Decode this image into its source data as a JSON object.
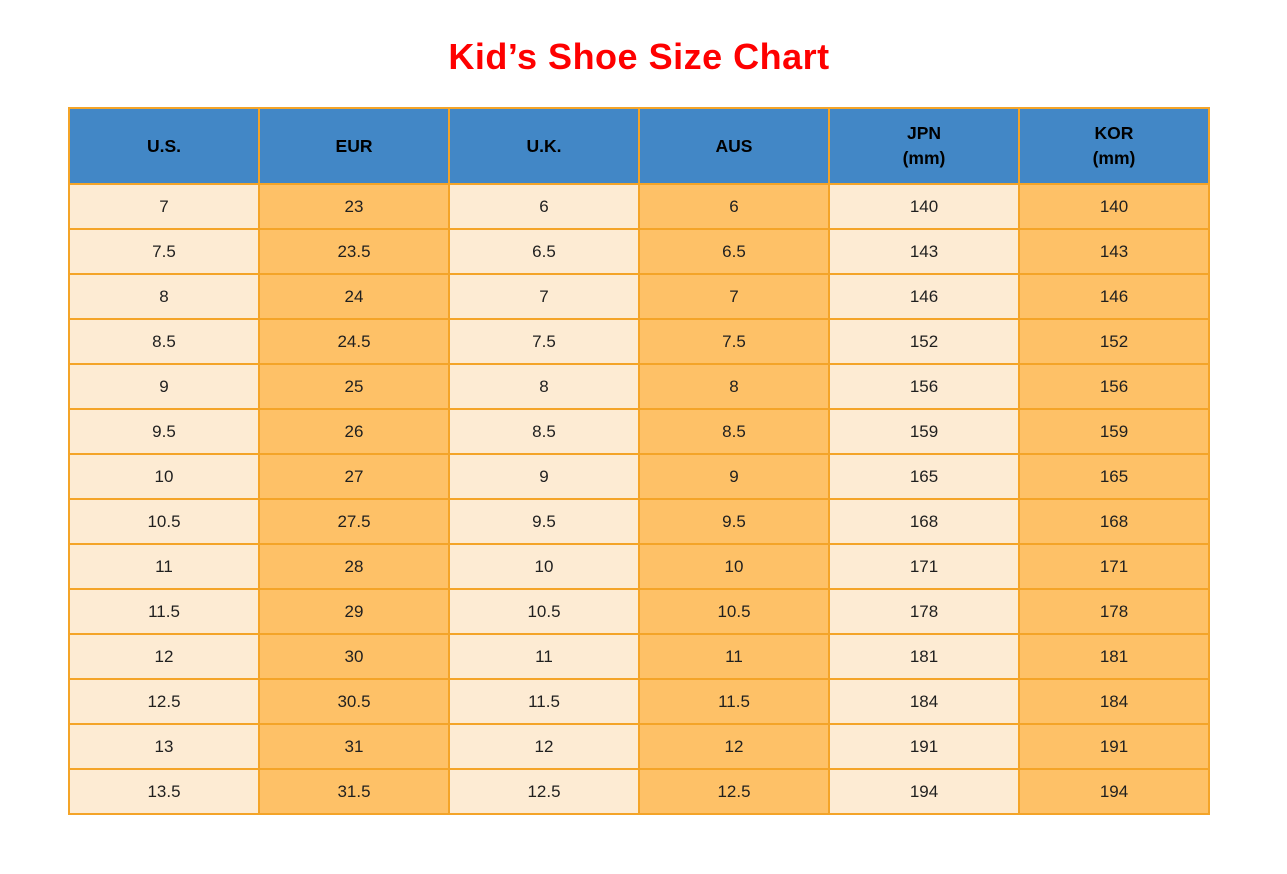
{
  "title": "Kid’s Shoe Size Chart",
  "table": {
    "headers": [
      {
        "label": "U.S.",
        "sub": ""
      },
      {
        "label": "EUR",
        "sub": ""
      },
      {
        "label": "U.K.",
        "sub": ""
      },
      {
        "label": "AUS",
        "sub": ""
      },
      {
        "label": "JPN",
        "sub": "(mm)"
      },
      {
        "label": "KOR",
        "sub": "(mm)"
      }
    ],
    "rows": [
      [
        "7",
        "23",
        "6",
        "6",
        "140",
        "140"
      ],
      [
        "7.5",
        "23.5",
        "6.5",
        "6.5",
        "143",
        "143"
      ],
      [
        "8",
        "24",
        "7",
        "7",
        "146",
        "146"
      ],
      [
        "8.5",
        "24.5",
        "7.5",
        "7.5",
        "152",
        "152"
      ],
      [
        "9",
        "25",
        "8",
        "8",
        "156",
        "156"
      ],
      [
        "9.5",
        "26",
        "8.5",
        "8.5",
        "159",
        "159"
      ],
      [
        "10",
        "27",
        "9",
        "9",
        "165",
        "165"
      ],
      [
        "10.5",
        "27.5",
        "9.5",
        "9.5",
        "168",
        "168"
      ],
      [
        "11",
        "28",
        "10",
        "10",
        "171",
        "171"
      ],
      [
        "11.5",
        "29",
        "10.5",
        "10.5",
        "178",
        "178"
      ],
      [
        "12",
        "30",
        "11",
        "11",
        "181",
        "181"
      ],
      [
        "12.5",
        "30.5",
        "11.5",
        "11.5",
        "184",
        "184"
      ],
      [
        "13",
        "31",
        "12",
        "12",
        "191",
        "191"
      ],
      [
        "13.5",
        "31.5",
        "12.5",
        "12.5",
        "194",
        "194"
      ]
    ]
  },
  "chart_data": {
    "type": "table",
    "title": "Kid’s Shoe Size Chart",
    "columns": [
      "U.S.",
      "EUR",
      "U.K.",
      "AUS",
      "JPN (mm)",
      "KOR (mm)"
    ],
    "rows": [
      [
        7,
        23,
        6,
        6,
        140,
        140
      ],
      [
        7.5,
        23.5,
        6.5,
        6.5,
        143,
        143
      ],
      [
        8,
        24,
        7,
        7,
        146,
        146
      ],
      [
        8.5,
        24.5,
        7.5,
        7.5,
        152,
        152
      ],
      [
        9,
        25,
        8,
        8,
        156,
        156
      ],
      [
        9.5,
        26,
        8.5,
        8.5,
        159,
        159
      ],
      [
        10,
        27,
        9,
        9,
        165,
        165
      ],
      [
        10.5,
        27.5,
        9.5,
        9.5,
        168,
        168
      ],
      [
        11,
        28,
        10,
        10,
        171,
        171
      ],
      [
        11.5,
        29,
        10.5,
        10.5,
        178,
        178
      ],
      [
        12,
        30,
        11,
        11,
        181,
        181
      ],
      [
        12.5,
        30.5,
        11.5,
        11.5,
        184,
        184
      ],
      [
        13,
        31,
        12,
        12,
        191,
        191
      ],
      [
        13.5,
        31.5,
        12.5,
        12.5,
        194,
        194
      ]
    ],
    "layout": {
      "column_fill_pattern": [
        "cream",
        "orange",
        "cream",
        "orange",
        "cream",
        "orange"
      ],
      "header_style": "blue-bold",
      "grid": true
    }
  },
  "colors": {
    "title": "#fe0000",
    "header_bg": "#4287c6",
    "header_text": "#000000",
    "cell_cream": "#fdebd3",
    "cell_orange": "#fec167",
    "border": "#f4a428",
    "cell_text": "#1f1f1f",
    "page_bg": "#ffffff"
  }
}
